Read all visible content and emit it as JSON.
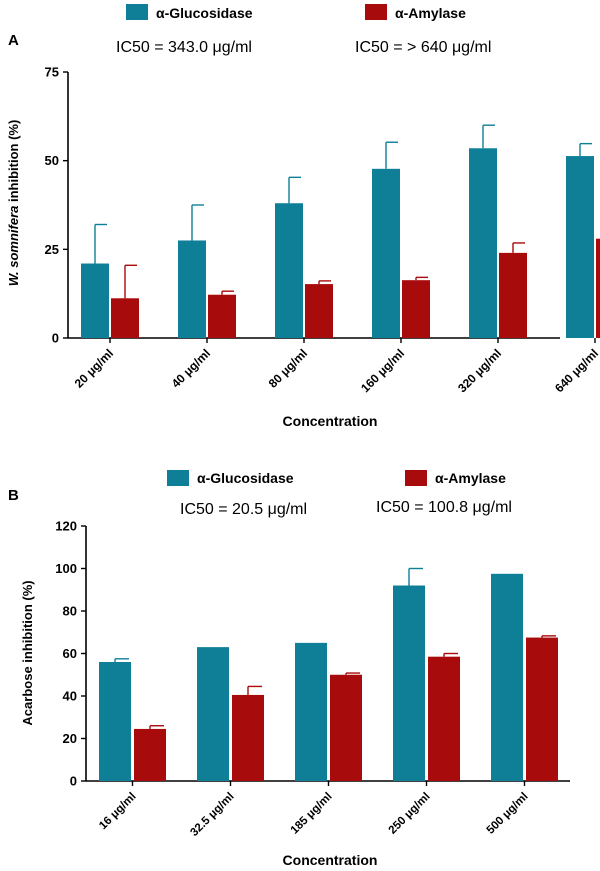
{
  "colors": {
    "glucosidase": "#0e7f96",
    "amylase": "#a80b0b"
  },
  "chart_data": [
    {
      "type": "bar",
      "panel_label": "A",
      "ylabel_italic": "W. somnifera",
      "ylabel_rest": " inhibition (%)",
      "xlabel": "Concentration",
      "ylim": [
        0,
        75
      ],
      "yticks": [
        0,
        25,
        50,
        75
      ],
      "categories": [
        "20 μg/ml",
        "40 μg/ml",
        "80 μg/ml",
        "160 μg/ml",
        "320 μg/ml",
        "640 μg/ml"
      ],
      "legend": {
        "position": "top",
        "glucosidase": "α-Glucosidase",
        "amylase": "α-Amylase"
      },
      "annotations": {
        "ic50_glucosidase": "IC50 = 343.0 μg/ml",
        "ic50_amylase": "IC50 = > 640 μg/ml"
      },
      "series": [
        {
          "name": "α-Glucosidase",
          "values": [
            21.0,
            27.5,
            38.0,
            47.7,
            53.5,
            51.3
          ],
          "errors": [
            11.0,
            10.0,
            7.3,
            7.5,
            6.5,
            3.5
          ]
        },
        {
          "name": "α-Amylase",
          "values": [
            11.2,
            12.2,
            15.2,
            16.3,
            24.0,
            28.0
          ],
          "errors": [
            9.3,
            1.0,
            0.9,
            0.8,
            2.8,
            3.0
          ]
        }
      ]
    },
    {
      "type": "bar",
      "panel_label": "B",
      "ylabel": "Acarbose inhibition (%)",
      "xlabel": "Concentration",
      "ylim": [
        0,
        120
      ],
      "yticks": [
        0,
        20,
        40,
        60,
        80,
        100,
        120
      ],
      "categories": [
        "16 μg/ml",
        "32.5 μg/ml",
        "185 μg/ml",
        "250 μg/ml",
        "500 μg/ml"
      ],
      "legend": {
        "position": "top",
        "glucosidase": "α-Glucosidase",
        "amylase": "α-Amylase"
      },
      "annotations": {
        "ic50_glucosidase": "IC50 = 20.5 μg/ml",
        "ic50_amylase": "IC50 = 100.8 μg/ml"
      },
      "series": [
        {
          "name": "α-Glucosidase",
          "values": [
            56.0,
            63.0,
            65.0,
            92.0,
            97.5
          ],
          "errors": [
            1.5,
            0,
            0,
            8.0,
            0
          ]
        },
        {
          "name": "α-Amylase",
          "values": [
            24.5,
            40.5,
            50.0,
            58.5,
            67.5
          ],
          "errors": [
            1.5,
            4.0,
            0.8,
            1.5,
            0.8
          ]
        }
      ]
    }
  ]
}
